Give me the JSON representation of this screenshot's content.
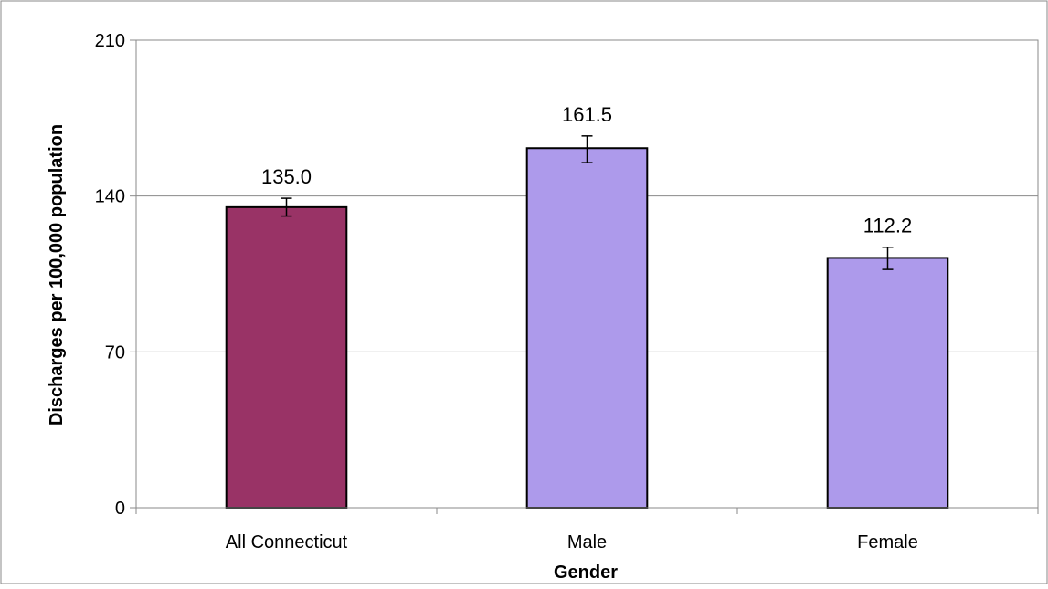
{
  "chart_data": {
    "type": "bar",
    "title": "",
    "xlabel": "Gender",
    "ylabel": "Discharges per 100,000 population",
    "categories": [
      "All Connecticut",
      "Male",
      "Female"
    ],
    "values": [
      135.0,
      161.5,
      112.2
    ],
    "value_labels": [
      "135.0",
      "161.5",
      "112.2"
    ],
    "error_bars": [
      {
        "low": 131.0,
        "high": 139.0
      },
      {
        "low": 155.0,
        "high": 167.0
      },
      {
        "low": 107.0,
        "high": 117.0
      }
    ],
    "colors": [
      "#993366",
      "#ad9aeb",
      "#ad9aeb"
    ],
    "ylim": [
      0,
      210
    ],
    "yticks": [
      0,
      70,
      140,
      210
    ],
    "ytick_labels": [
      "0",
      "70",
      "140",
      "210"
    ],
    "grid": true,
    "legend": "none"
  }
}
